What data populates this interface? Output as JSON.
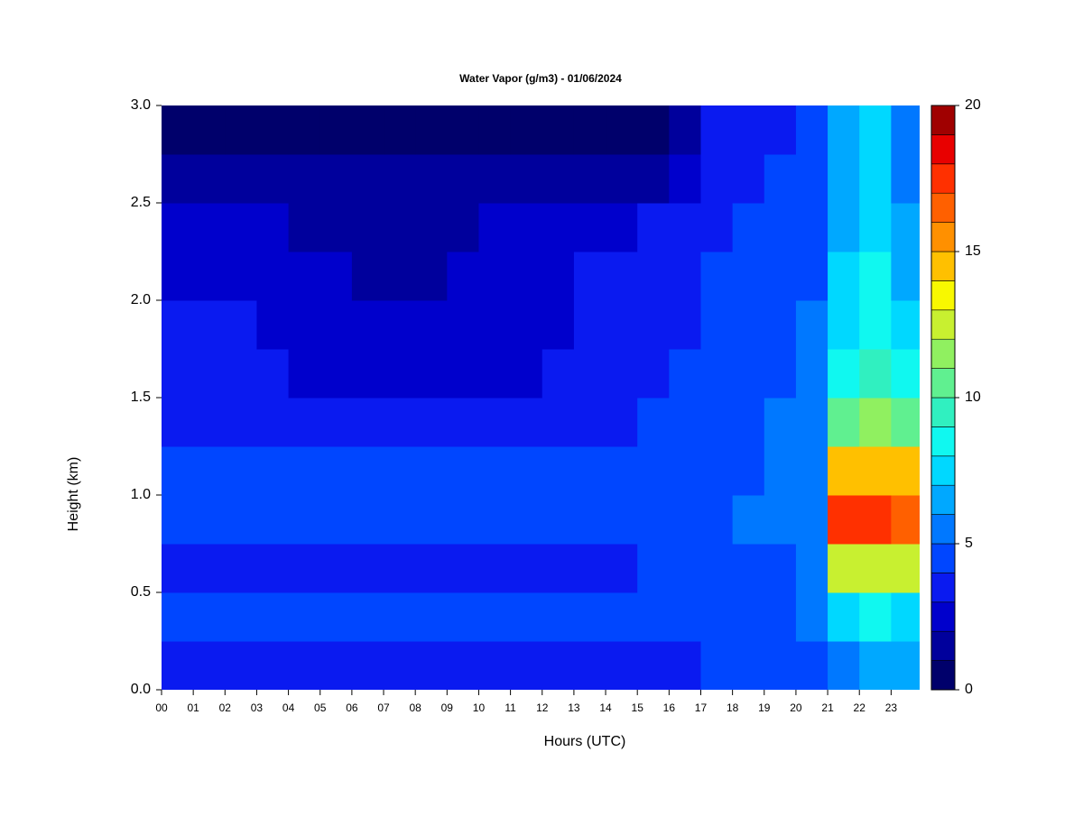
{
  "chart_data": {
    "type": "heatmap",
    "title": "Water Vapor (g/m3) - 01/06/2024",
    "x_label": "Hours (UTC)",
    "y_label": "Height (km)",
    "x": [
      0.5,
      1.5,
      2.5,
      3.5,
      4.5,
      5.5,
      6.5,
      7.5,
      8.5,
      9.5,
      10.5,
      11.5,
      12.5,
      13.5,
      14.5,
      15.5,
      16.5,
      17.5,
      18.5,
      19.5,
      20.5,
      21.5,
      22.5,
      23.5
    ],
    "y": [
      0.125,
      0.375,
      0.625,
      0.875,
      1.125,
      1.375,
      1.625,
      1.875,
      2.125,
      2.375,
      2.625,
      2.875
    ],
    "z": [
      [
        3.2,
        3.3,
        3.3,
        3.3,
        3.3,
        3.3,
        3.3,
        3.3,
        3.4,
        3.4,
        3.4,
        3.4,
        3.4,
        3.5,
        3.5,
        3.5,
        3.6,
        4.2,
        4.3,
        4.3,
        4.0,
        5.8,
        6.0,
        6.0
      ],
      [
        4.2,
        4.3,
        4.2,
        4.3,
        4.2,
        4.2,
        4.2,
        4.2,
        4.0,
        4.0,
        4.0,
        4.0,
        4.0,
        4.0,
        4.0,
        4.2,
        4.3,
        4.5,
        4.6,
        4.8,
        5.2,
        7.5,
        8.0,
        7.8
      ],
      [
        3.8,
        3.8,
        3.8,
        3.8,
        3.8,
        3.8,
        3.8,
        3.8,
        3.8,
        3.8,
        3.8,
        3.8,
        3.8,
        3.8,
        3.8,
        4.0,
        4.2,
        4.5,
        4.6,
        4.8,
        5.5,
        12.0,
        12.5,
        12.0
      ],
      [
        4.5,
        4.6,
        4.5,
        4.5,
        4.4,
        4.4,
        4.5,
        4.3,
        4.3,
        4.2,
        4.3,
        4.3,
        4.2,
        4.2,
        4.2,
        4.3,
        4.5,
        4.8,
        5.0,
        5.2,
        5.8,
        17.0,
        17.2,
        16.8
      ],
      [
        4.3,
        4.4,
        4.3,
        4.3,
        4.2,
        4.2,
        4.2,
        4.2,
        4.0,
        4.0,
        4.0,
        4.0,
        4.0,
        4.0,
        4.0,
        4.2,
        4.4,
        4.7,
        4.9,
        5.2,
        5.8,
        14.0,
        14.5,
        14.0
      ],
      [
        3.8,
        3.8,
        3.8,
        3.7,
        3.6,
        3.5,
        3.5,
        3.5,
        3.5,
        3.5,
        3.6,
        3.6,
        3.7,
        3.8,
        3.8,
        4.0,
        4.3,
        4.6,
        4.8,
        5.0,
        5.6,
        10.5,
        11.0,
        10.5
      ],
      [
        3.3,
        3.3,
        3.2,
        3.0,
        2.8,
        2.7,
        2.6,
        2.6,
        2.6,
        2.7,
        2.8,
        2.9,
        3.0,
        3.2,
        3.4,
        3.7,
        4.1,
        4.4,
        4.6,
        4.8,
        5.4,
        8.5,
        9.5,
        8.5
      ],
      [
        3.2,
        3.1,
        3.0,
        2.8,
        2.6,
        2.4,
        2.3,
        2.3,
        2.4,
        2.5,
        2.7,
        2.8,
        2.9,
        3.1,
        3.3,
        3.5,
        3.9,
        4.3,
        4.5,
        4.7,
        5.2,
        7.5,
        8.5,
        7.5
      ],
      [
        2.7,
        2.6,
        2.4,
        2.3,
        2.2,
        2.0,
        1.8,
        1.8,
        1.9,
        2.0,
        2.3,
        2.6,
        2.8,
        3.0,
        3.2,
        3.4,
        3.8,
        4.1,
        4.3,
        4.5,
        4.9,
        7.0,
        8.0,
        6.8
      ],
      [
        2.3,
        2.2,
        2.1,
        2.0,
        1.7,
        1.6,
        1.5,
        1.6,
        1.7,
        1.9,
        2.2,
        2.4,
        2.6,
        2.7,
        2.8,
        3.0,
        3.4,
        3.9,
        4.1,
        4.3,
        4.6,
        6.5,
        7.5,
        6.2
      ],
      [
        1.6,
        1.4,
        1.4,
        1.3,
        1.2,
        1.1,
        1.0,
        1.0,
        1.1,
        1.3,
        1.6,
        1.8,
        1.9,
        1.8,
        1.6,
        1.9,
        2.8,
        3.5,
        3.8,
        4.0,
        4.3,
        6.2,
        7.5,
        5.8
      ],
      [
        0.8,
        0.7,
        0.7,
        0.6,
        0.6,
        0.6,
        0.6,
        0.6,
        0.6,
        0.7,
        0.8,
        0.9,
        0.9,
        0.8,
        0.8,
        0.9,
        1.5,
        3.2,
        3.5,
        3.8,
        4.0,
        6.0,
        7.2,
        5.5
      ]
    ],
    "xlim": [
      0,
      23.9
    ],
    "ylim": [
      0,
      3
    ],
    "xticks": [
      {
        "value": 0,
        "label": "00"
      },
      {
        "value": 1,
        "label": "01"
      },
      {
        "value": 2,
        "label": "02"
      },
      {
        "value": 3,
        "label": "03"
      },
      {
        "value": 4,
        "label": "04"
      },
      {
        "value": 5,
        "label": "05"
      },
      {
        "value": 6,
        "label": "06"
      },
      {
        "value": 7,
        "label": "07"
      },
      {
        "value": 8,
        "label": "08"
      },
      {
        "value": 9,
        "label": "09"
      },
      {
        "value": 10,
        "label": "10"
      },
      {
        "value": 11,
        "label": "11"
      },
      {
        "value": 12,
        "label": "12"
      },
      {
        "value": 13,
        "label": "13"
      },
      {
        "value": 14,
        "label": "14"
      },
      {
        "value": 15,
        "label": "15"
      },
      {
        "value": 16,
        "label": "16"
      },
      {
        "value": 17,
        "label": "17"
      },
      {
        "value": 18,
        "label": "18"
      },
      {
        "value": 19,
        "label": "19"
      },
      {
        "value": 20,
        "label": "20"
      },
      {
        "value": 21,
        "label": "21"
      },
      {
        "value": 22,
        "label": "22"
      },
      {
        "value": 23,
        "label": "23"
      }
    ],
    "yticks": [
      {
        "value": 0,
        "label": "0.0"
      },
      0.5,
      {
        "value": 1,
        "label": "1.0"
      },
      1.5,
      {
        "value": 2,
        "label": "2.0"
      },
      2.5,
      {
        "value": 3,
        "label": "3.0"
      }
    ],
    "zlim": [
      0,
      20
    ],
    "zticks": [
      0,
      5,
      10,
      15,
      20
    ],
    "colors": [
      "#00006b",
      "#00009c",
      "#0000cc",
      "#0a1af0",
      "#0046ff",
      "#0078ff",
      "#00a8ff",
      "#00d8ff",
      "#10f8f0",
      "#30f0c0",
      "#60f090",
      "#90f060",
      "#c8f030",
      "#f8f800",
      "#ffc000",
      "#ff9000",
      "#ff6000",
      "#ff3000",
      "#e80000",
      "#a00000"
    ]
  }
}
